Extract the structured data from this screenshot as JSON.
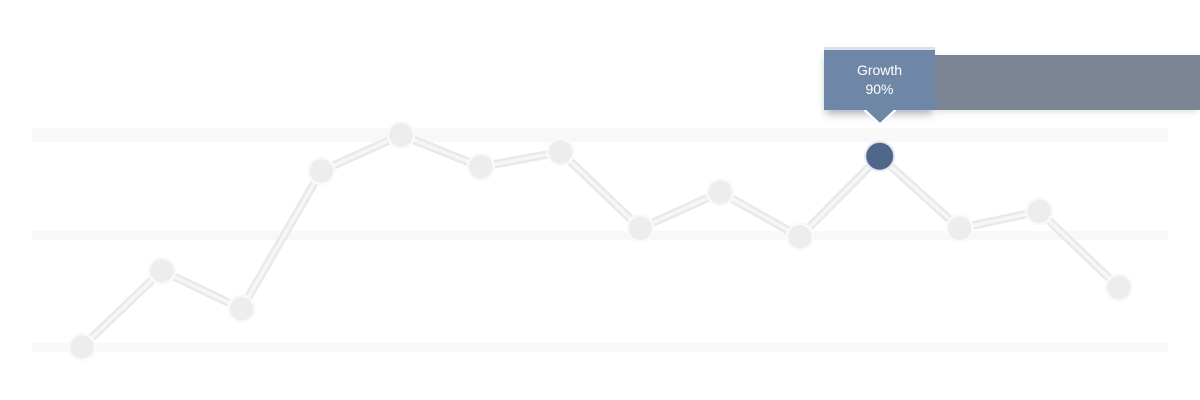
{
  "chart_data": {
    "type": "line",
    "title": "",
    "xlabel": "",
    "ylabel": "",
    "axes_visible": false,
    "x_labels_visible": false,
    "legend": "none",
    "unit": "%",
    "ylim": [
      0,
      100
    ],
    "gridlines": {
      "orientation": "horizontal",
      "values": [
        100,
        50,
        0
      ],
      "style": "light-gray-bands"
    },
    "num_points": 14,
    "series": [
      {
        "name": "Growth",
        "values": [
          0,
          36,
          18,
          83,
          100,
          85,
          92,
          56,
          73,
          52,
          90,
          56,
          64,
          28
        ]
      }
    ],
    "highlighted_point": {
      "index": 10,
      "value": 90,
      "series": "Growth",
      "display": "90%"
    }
  },
  "tooltip": {
    "label": "Growth",
    "value": "90%"
  },
  "colors": {
    "background": "#ffffff",
    "gridband": "#f8f8f8",
    "line_outer": "#e9e9e9",
    "line_inner": "#f6f6f6",
    "marker_fill": "#ededed",
    "marker_border": "#fafafa",
    "highlight_fill": "#50678b",
    "highlight_border": "#e3e8f0",
    "tooltip_bg": "#6f87a6",
    "tooltip_top_border": "#dde1ea",
    "tooltip_text": "#ffffff",
    "side_bar": "#7c8594"
  }
}
